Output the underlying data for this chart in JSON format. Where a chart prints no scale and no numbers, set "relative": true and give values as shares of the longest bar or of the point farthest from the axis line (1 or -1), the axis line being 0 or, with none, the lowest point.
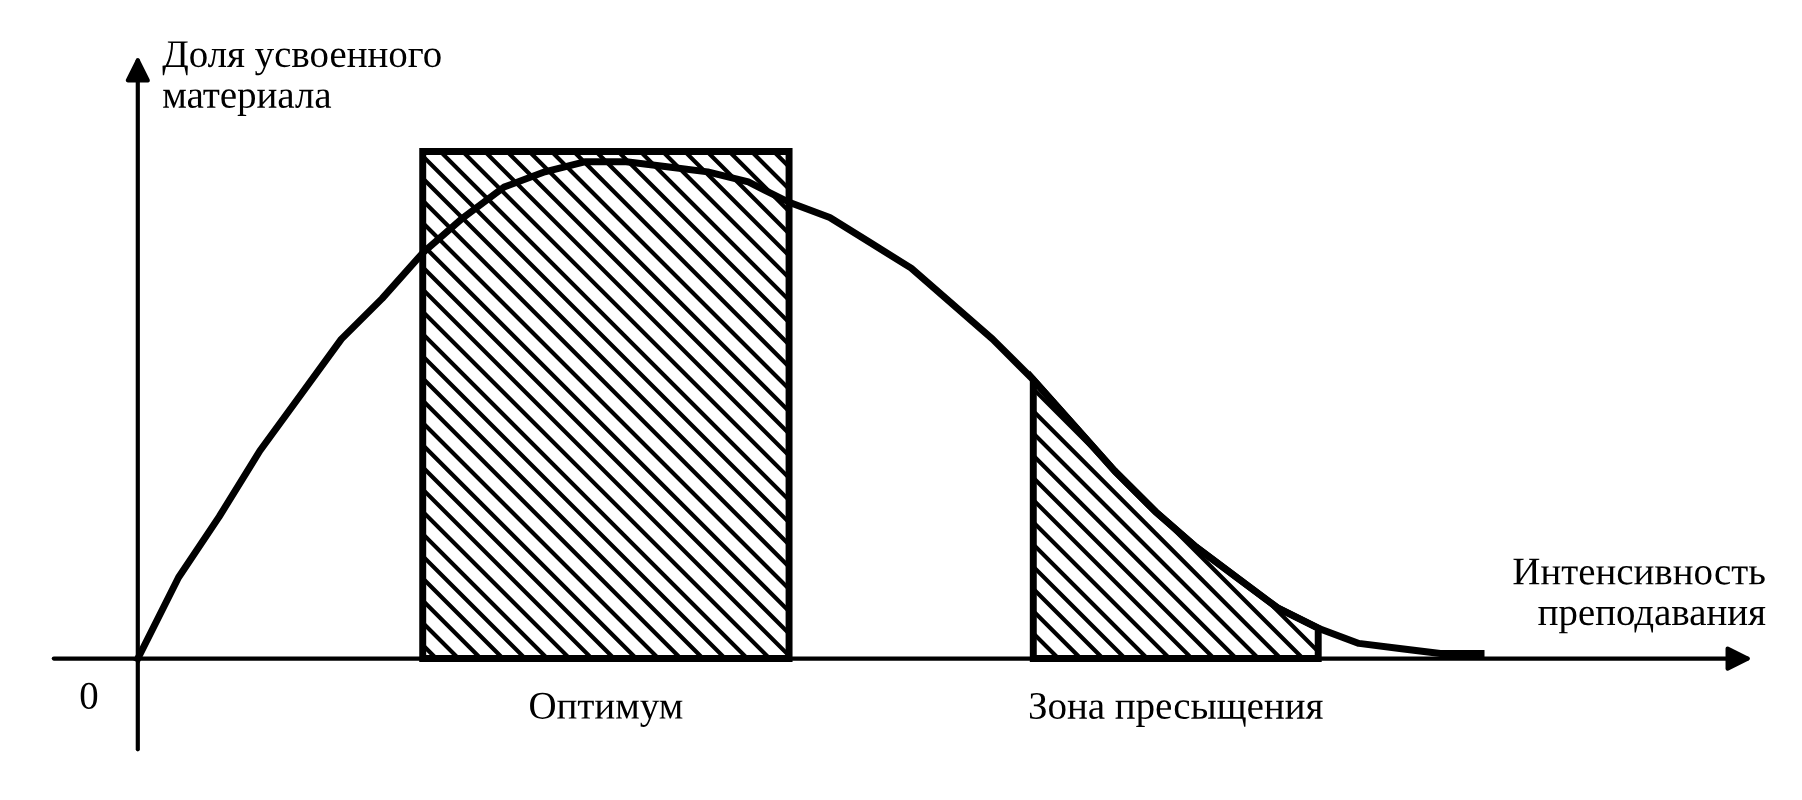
{
  "chart_data": {
    "type": "line",
    "relative": true,
    "xlabel": "Интенсивность\nпреподавания",
    "ylabel": "Доля усвоенного\nматериала",
    "annotations": [
      "0",
      "Оптимум",
      "Зона пресыщения"
    ],
    "categories": [
      null,
      null,
      null,
      null,
      null,
      null,
      null,
      null,
      null,
      null,
      null,
      null,
      null,
      null,
      null,
      null,
      null,
      null,
      null,
      null,
      null,
      null,
      null,
      null,
      null,
      null,
      null,
      null,
      null,
      null,
      null,
      null,
      null,
      null
    ],
    "legend": false,
    "series": [
      {
        "color": "#000000",
        "values": [
          0,
          0.16,
          0.28,
          0.41,
          0.52,
          0.63,
          0.71,
          0.8,
          0.87,
          0.93,
          0.96,
          0.98,
          0.98,
          0.97,
          0.96,
          0.94,
          0.9,
          0.87,
          0.82,
          0.77,
          0.7,
          0.63,
          0.55,
          0.46,
          0.37,
          0.29,
          0.22,
          0.16,
          0.1,
          0.06,
          0.03,
          0.02,
          0.01,
          0.01
        ]
      },
      {
        "type": "area",
        "color": "#000000",
        "values": [
          null,
          null,
          null,
          null,
          null,
          null,
          null,
          1,
          1,
          1,
          1,
          1,
          1,
          1,
          1,
          1,
          1,
          null,
          null,
          null,
          null,
          null,
          null,
          null,
          null,
          null,
          null,
          null,
          null,
          null,
          null,
          null,
          null,
          null
        ]
      },
      {
        "type": "area",
        "color": "#000000",
        "values": [
          null,
          null,
          null,
          null,
          null,
          null,
          null,
          null,
          null,
          null,
          null,
          null,
          null,
          null,
          null,
          null,
          null,
          null,
          null,
          null,
          null,
          null,
          0.55,
          0.46,
          0.37,
          0.29,
          0.22,
          0.16,
          0.1,
          0.06,
          null,
          null,
          null,
          null
        ]
      }
    ]
  }
}
